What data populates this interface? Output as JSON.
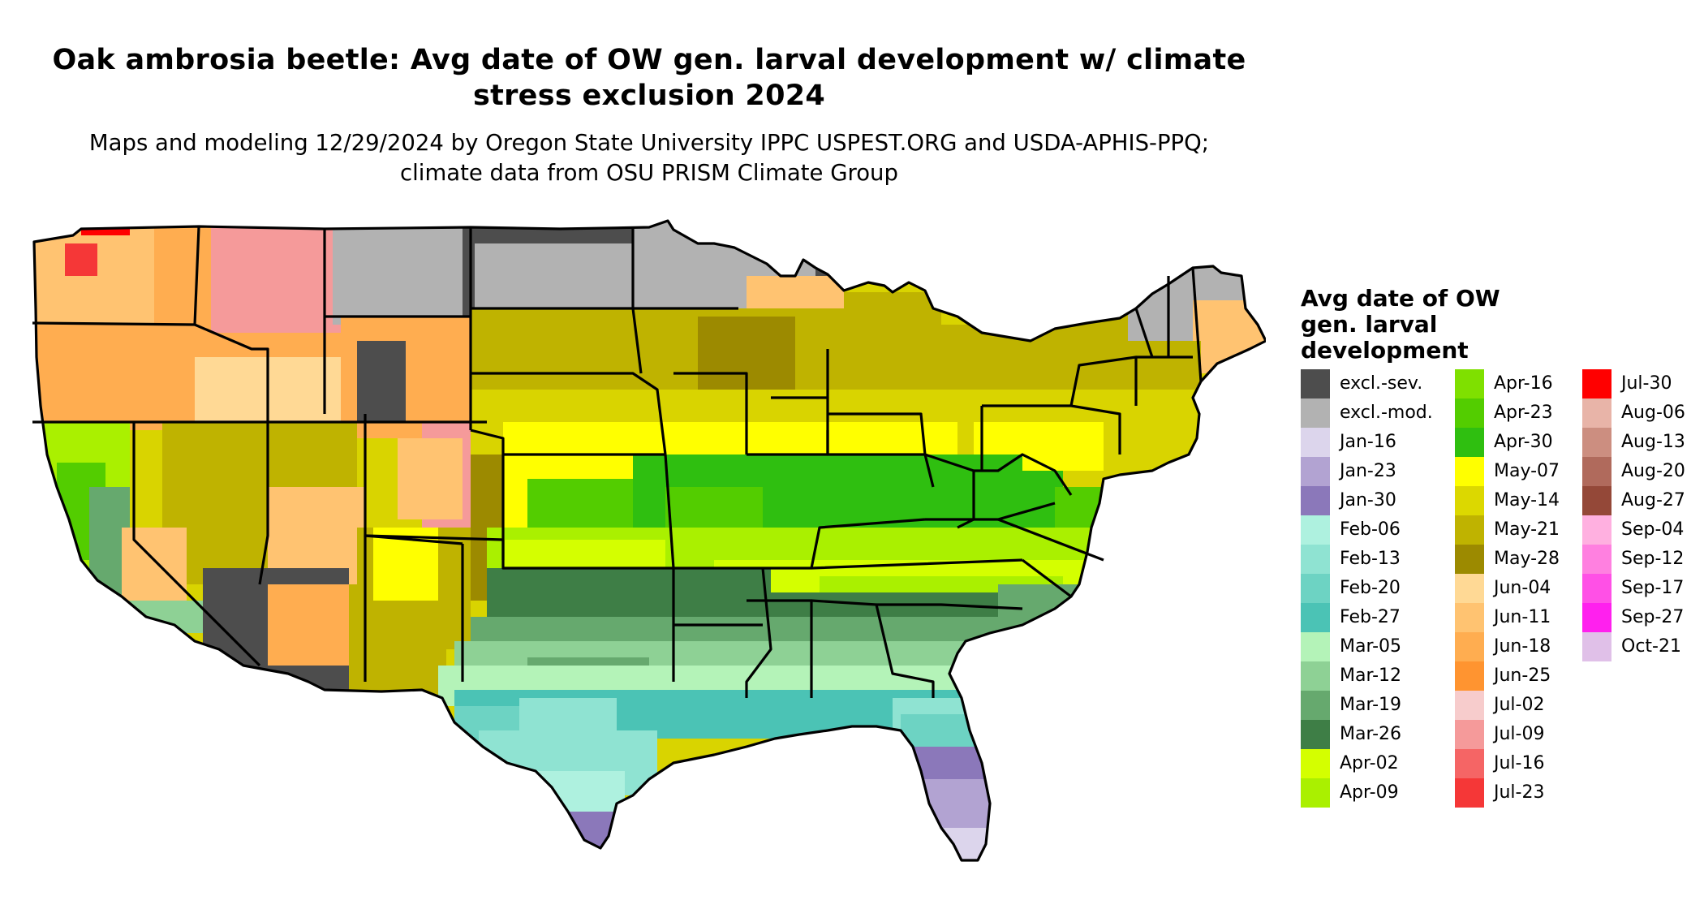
{
  "title": "Oak ambrosia beetle: Avg date of OW gen. larval development w/ climate stress exclusion 2024",
  "subtitle": "Maps and modeling 12/29/2024 by Oregon State University IPPC USPEST.ORG and USDA-APHIS-PPQ; climate data from OSU PRISM Climate Group",
  "legend": {
    "title": "Avg date of OW gen. larval development",
    "columns": [
      [
        {
          "label": "excl.-sev.",
          "color": "#4d4d4d"
        },
        {
          "label": "excl.-mod.",
          "color": "#b2b2b2"
        },
        {
          "label": "Jan-16",
          "color": "#dcd5ec"
        },
        {
          "label": "Jan-23",
          "color": "#b2a3d2"
        },
        {
          "label": "Jan-30",
          "color": "#8b78ba"
        },
        {
          "label": "Feb-06",
          "color": "#aef1df"
        },
        {
          "label": "Feb-13",
          "color": "#8fe3d2"
        },
        {
          "label": "Feb-20",
          "color": "#6dd3c3"
        },
        {
          "label": "Feb-27",
          "color": "#4bc3b5"
        },
        {
          "label": "Mar-05",
          "color": "#b4f3b8"
        },
        {
          "label": "Mar-12",
          "color": "#8ed195"
        },
        {
          "label": "Mar-19",
          "color": "#66a96e"
        },
        {
          "label": "Mar-26",
          "color": "#3e7e46"
        },
        {
          "label": "Apr-02",
          "color": "#d4ff00"
        },
        {
          "label": "Apr-09",
          "color": "#aaf000"
        }
      ],
      [
        {
          "label": "Apr-16",
          "color": "#7fe000"
        },
        {
          "label": "Apr-23",
          "color": "#53cd00"
        },
        {
          "label": "Apr-30",
          "color": "#2fbf10"
        },
        {
          "label": "May-07",
          "color": "#ffff00"
        },
        {
          "label": "May-14",
          "color": "#dcd800"
        },
        {
          "label": "May-21",
          "color": "#bfb300"
        },
        {
          "label": "May-28",
          "color": "#9c8a00"
        },
        {
          "label": "Jun-04",
          "color": "#ffd995"
        },
        {
          "label": "Jun-11",
          "color": "#ffc371"
        },
        {
          "label": "Jun-18",
          "color": "#ffad50"
        },
        {
          "label": "Jun-25",
          "color": "#ff9430"
        },
        {
          "label": "Jul-02",
          "color": "#f7cccc"
        },
        {
          "label": "Jul-09",
          "color": "#f59a9a"
        },
        {
          "label": "Jul-16",
          "color": "#f56565"
        },
        {
          "label": "Jul-23",
          "color": "#f53737"
        }
      ],
      [
        {
          "label": "Jul-30",
          "color": "#ff0000"
        },
        {
          "label": "Aug-06",
          "color": "#e8b4a8"
        },
        {
          "label": "Aug-13",
          "color": "#cc8e80"
        },
        {
          "label": "Aug-20",
          "color": "#b06a5c"
        },
        {
          "label": "Aug-27",
          "color": "#944838"
        },
        {
          "label": "Sep-04",
          "color": "#ffb0e0"
        },
        {
          "label": "Sep-12",
          "color": "#ff80e0"
        },
        {
          "label": "Sep-17",
          "color": "#ff50e6"
        },
        {
          "label": "Sep-27",
          "color": "#ff20ee"
        },
        {
          "label": "Oct-21",
          "color": "#e0c0e8"
        }
      ]
    ]
  }
}
